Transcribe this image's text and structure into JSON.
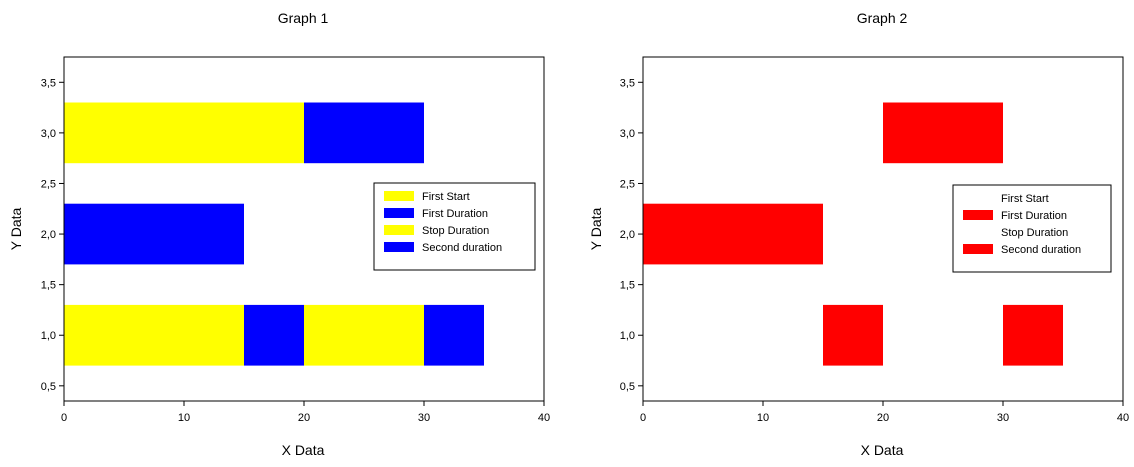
{
  "colors": {
    "yellow": "#ffff00",
    "blue": "#0000ff",
    "red": "#ff0000",
    "frame": "#000000",
    "background": "#ffffff"
  },
  "chart_data": [
    {
      "type": "bar",
      "orientation": "horizontal-stacked",
      "title": "Graph 1",
      "xlabel": "X Data",
      "ylabel": "Y Data",
      "xlim": [
        0,
        40
      ],
      "ylim": [
        0.35,
        3.75
      ],
      "xticks": [
        0,
        10,
        20,
        30,
        40
      ],
      "xtick_labels": [
        "0",
        "10",
        "20",
        "30",
        "40"
      ],
      "yticks": [
        0.5,
        1.0,
        1.5,
        2.0,
        2.5,
        3.0,
        3.5
      ],
      "ytick_labels": [
        "0,5",
        "1,0",
        "1,5",
        "2,0",
        "2,5",
        "3,0",
        "3,5"
      ],
      "bar_height": 0.6,
      "grid": false,
      "legend_position": "right",
      "categories": [
        1,
        2,
        3
      ],
      "series": [
        {
          "name": "First Start",
          "color": "#ffff00",
          "values": [
            15,
            0,
            20
          ],
          "shown_in_legend": true
        },
        {
          "name": "First Duration",
          "color": "#0000ff",
          "values": [
            5,
            15,
            10
          ],
          "shown_in_legend": true
        },
        {
          "name": "Stop Duration",
          "color": "#ffff00",
          "values": [
            10,
            0,
            0
          ],
          "shown_in_legend": true
        },
        {
          "name": "Second duration",
          "color": "#0000ff",
          "values": [
            5,
            0,
            0
          ],
          "shown_in_legend": true
        }
      ]
    },
    {
      "type": "bar",
      "orientation": "horizontal-stacked",
      "title": "Graph 2",
      "xlabel": "X Data",
      "ylabel": "Y Data",
      "xlim": [
        0,
        40
      ],
      "ylim": [
        0.35,
        3.75
      ],
      "xticks": [
        0,
        10,
        20,
        30,
        40
      ],
      "xtick_labels": [
        "0",
        "10",
        "20",
        "30",
        "40"
      ],
      "yticks": [
        0.5,
        1.0,
        1.5,
        2.0,
        2.5,
        3.0,
        3.5
      ],
      "ytick_labels": [
        "0,5",
        "1,0",
        "1,5",
        "2,0",
        "2,5",
        "3,0",
        "3,5"
      ],
      "bar_height": 0.6,
      "grid": false,
      "legend_position": "right",
      "categories": [
        1,
        2,
        3
      ],
      "series": [
        {
          "name": "First Start",
          "color": null,
          "values": [
            15,
            0,
            20
          ],
          "shown_in_legend": true
        },
        {
          "name": "First Duration",
          "color": "#ff0000",
          "values": [
            5,
            15,
            10
          ],
          "shown_in_legend": true
        },
        {
          "name": "Stop Duration",
          "color": null,
          "values": [
            10,
            0,
            0
          ],
          "shown_in_legend": true
        },
        {
          "name": "Second duration",
          "color": "#ff0000",
          "values": [
            5,
            0,
            0
          ],
          "shown_in_legend": true
        }
      ]
    }
  ]
}
